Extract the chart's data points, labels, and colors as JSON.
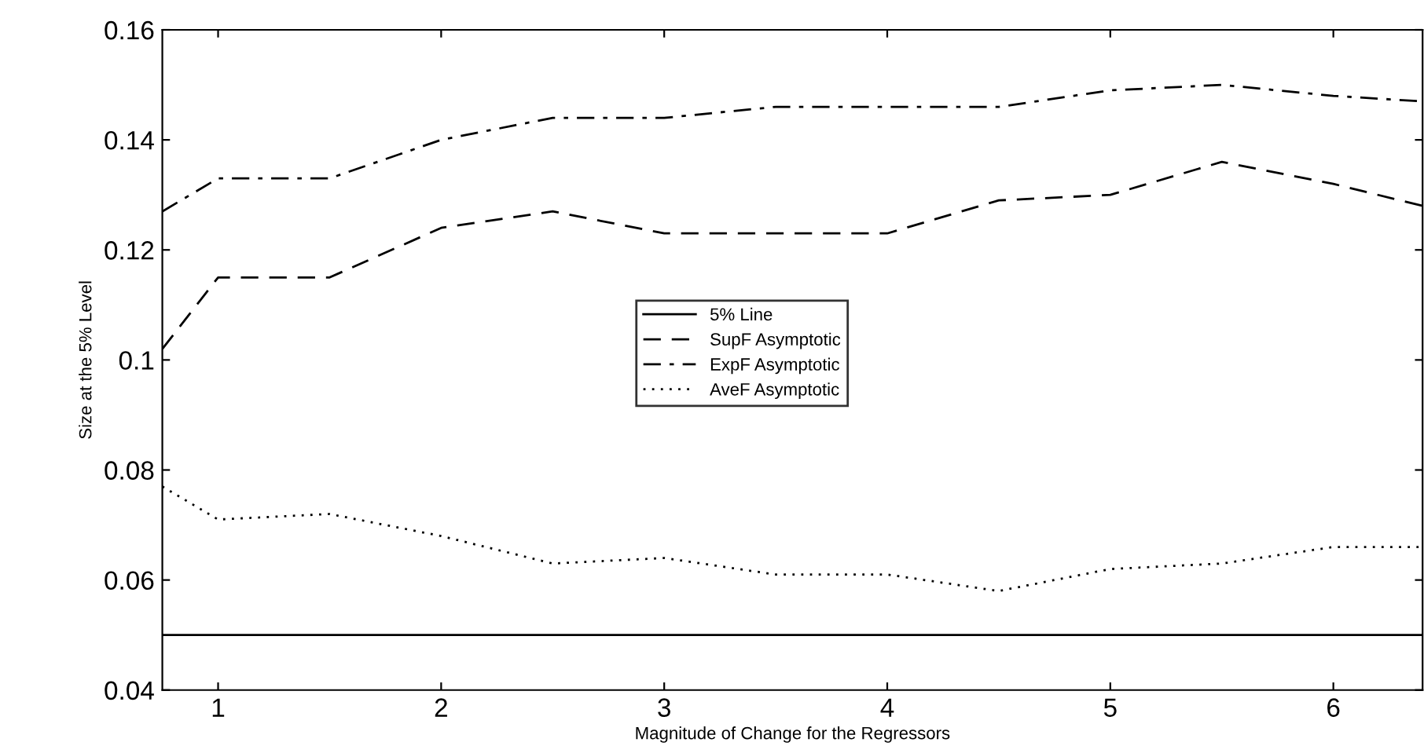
{
  "chart_data": {
    "type": "line",
    "xlabel": "Magnitude of Change for the Regressors",
    "ylabel": "Size at the 5% Level",
    "x": [
      0.75,
      1,
      1.5,
      2,
      2.5,
      3,
      3.5,
      4,
      4.5,
      5,
      5.5,
      6,
      6.4
    ],
    "series": [
      {
        "name": "5% Line",
        "color": "#000000",
        "line_style": "solid",
        "values": [
          0.05,
          0.05,
          0.05,
          0.05,
          0.05,
          0.05,
          0.05,
          0.05,
          0.05,
          0.05,
          0.05,
          0.05,
          0.05
        ]
      },
      {
        "name": "SupF Asymptotic",
        "color": "#000000",
        "line_style": "dashed",
        "values": [
          0.102,
          0.115,
          0.115,
          0.124,
          0.127,
          0.123,
          0.123,
          0.123,
          0.129,
          0.13,
          0.136,
          0.132,
          0.128
        ]
      },
      {
        "name": "ExpF Asymptotic",
        "color": "#000000",
        "line_style": "dashdot",
        "values": [
          0.127,
          0.133,
          0.133,
          0.14,
          0.144,
          0.144,
          0.146,
          0.146,
          0.146,
          0.149,
          0.15,
          0.148,
          0.147
        ]
      },
      {
        "name": "AveF Asymptotic",
        "color": "#000000",
        "line_style": "dotted",
        "values": [
          0.077,
          0.071,
          0.072,
          0.068,
          0.063,
          0.064,
          0.061,
          0.061,
          0.058,
          0.062,
          0.063,
          0.066,
          0.066
        ]
      }
    ],
    "xlim": [
      0.75,
      6.4
    ],
    "xticks": [
      1,
      2,
      3,
      4,
      5,
      6
    ],
    "ylim": [
      0.04,
      0.16
    ],
    "yticks": [
      0.04,
      0.06,
      0.08,
      0.1,
      0.12,
      0.14,
      0.16
    ],
    "grid": false,
    "legend": "center"
  }
}
